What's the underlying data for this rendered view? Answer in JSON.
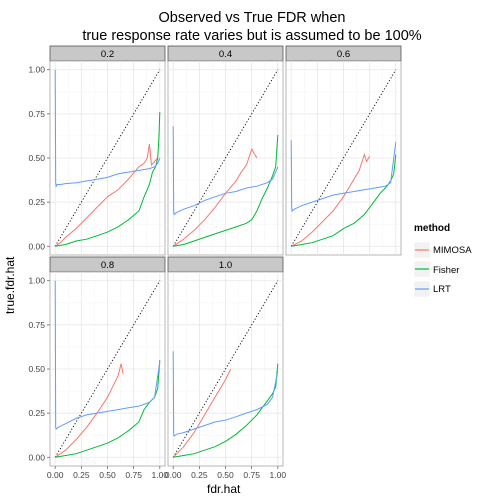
{
  "title_line1": "Observed vs True FDR when",
  "title_line2": "true response rate varies but is assumed to be 100%",
  "chart_data": {
    "type": "line",
    "xlabel": "fdr.hat",
    "ylabel": "true.fdr.hat",
    "xlim": [
      0,
      1
    ],
    "ylim": [
      0,
      1
    ],
    "xticks": [
      "0.00",
      "0.25",
      "0.50",
      "0.75",
      "1.00"
    ],
    "yticks": [
      "0.00",
      "0.25",
      "0.50",
      "0.75",
      "1.00"
    ],
    "grid": true,
    "diagonal_reference": "dotted y = x",
    "legend": {
      "title": "method",
      "placement": "right",
      "entries": [
        {
          "name": "MIMOSA",
          "color": "#F8766D"
        },
        {
          "name": "Fisher",
          "color": "#00BA38"
        },
        {
          "name": "LRT",
          "color": "#619CFF"
        }
      ]
    },
    "facets": [
      {
        "label": "0.2",
        "series": [
          {
            "name": "MIMOSA",
            "x": [
              0.0,
              0.05,
              0.1,
              0.2,
              0.3,
              0.4,
              0.5,
              0.6,
              0.7,
              0.8,
              0.85,
              0.88,
              0.9,
              0.92,
              0.95,
              0.98
            ],
            "y": [
              0.0,
              0.02,
              0.05,
              0.1,
              0.16,
              0.22,
              0.28,
              0.32,
              0.38,
              0.45,
              0.47,
              0.5,
              0.58,
              0.46,
              0.48,
              0.5
            ]
          },
          {
            "name": "Fisher",
            "x": [
              0.0,
              0.1,
              0.2,
              0.3,
              0.4,
              0.5,
              0.6,
              0.7,
              0.8,
              0.85,
              0.9,
              0.93,
              0.96,
              0.98,
              0.99,
              1.0
            ],
            "y": [
              0.0,
              0.01,
              0.03,
              0.04,
              0.06,
              0.08,
              0.11,
              0.15,
              0.2,
              0.28,
              0.35,
              0.42,
              0.45,
              0.5,
              0.6,
              0.76
            ]
          },
          {
            "name": "LRT",
            "x": [
              0.0,
              0.005,
              0.01,
              0.02,
              0.05,
              0.1,
              0.2,
              0.3,
              0.4,
              0.5,
              0.6,
              0.7,
              0.8,
              0.9,
              0.95,
              0.98,
              1.0
            ],
            "y": [
              1.0,
              0.36,
              0.34,
              0.35,
              0.35,
              0.355,
              0.36,
              0.37,
              0.38,
              0.39,
              0.41,
              0.42,
              0.43,
              0.44,
              0.45,
              0.47,
              0.5
            ]
          }
        ]
      },
      {
        "label": "0.4",
        "series": [
          {
            "name": "MIMOSA",
            "x": [
              0.0,
              0.1,
              0.2,
              0.3,
              0.4,
              0.5,
              0.6,
              0.65,
              0.7,
              0.75,
              0.8
            ],
            "y": [
              0.0,
              0.04,
              0.09,
              0.15,
              0.22,
              0.3,
              0.37,
              0.42,
              0.46,
              0.55,
              0.5
            ]
          },
          {
            "name": "Fisher",
            "x": [
              0.0,
              0.1,
              0.2,
              0.3,
              0.4,
              0.5,
              0.6,
              0.7,
              0.75,
              0.8,
              0.85,
              0.9,
              0.95,
              0.98,
              1.0
            ],
            "y": [
              0.0,
              0.01,
              0.03,
              0.05,
              0.07,
              0.09,
              0.11,
              0.13,
              0.15,
              0.2,
              0.27,
              0.33,
              0.4,
              0.45,
              0.63
            ]
          },
          {
            "name": "LRT",
            "x": [
              0.0,
              0.005,
              0.01,
              0.03,
              0.1,
              0.2,
              0.3,
              0.4,
              0.5,
              0.6,
              0.7,
              0.8,
              0.9,
              0.95,
              1.0
            ],
            "y": [
              0.68,
              0.2,
              0.18,
              0.19,
              0.21,
              0.23,
              0.26,
              0.28,
              0.3,
              0.31,
              0.33,
              0.34,
              0.36,
              0.38,
              0.45
            ]
          }
        ]
      },
      {
        "label": "0.6",
        "series": [
          {
            "name": "MIMOSA",
            "x": [
              0.0,
              0.1,
              0.2,
              0.3,
              0.4,
              0.5,
              0.6,
              0.65,
              0.7,
              0.72,
              0.75
            ],
            "y": [
              0.0,
              0.03,
              0.08,
              0.14,
              0.2,
              0.28,
              0.38,
              0.43,
              0.52,
              0.48,
              0.51
            ]
          },
          {
            "name": "Fisher",
            "x": [
              0.0,
              0.1,
              0.2,
              0.3,
              0.4,
              0.5,
              0.6,
              0.7,
              0.8,
              0.85,
              0.9,
              0.95,
              0.98,
              1.0
            ],
            "y": [
              0.0,
              0.01,
              0.02,
              0.04,
              0.06,
              0.1,
              0.13,
              0.18,
              0.26,
              0.3,
              0.33,
              0.37,
              0.41,
              0.52
            ]
          },
          {
            "name": "LRT",
            "x": [
              0.0,
              0.005,
              0.01,
              0.03,
              0.1,
              0.2,
              0.3,
              0.4,
              0.5,
              0.6,
              0.7,
              0.8,
              0.9,
              0.95,
              1.0
            ],
            "y": [
              0.6,
              0.22,
              0.2,
              0.21,
              0.23,
              0.25,
              0.27,
              0.29,
              0.3,
              0.31,
              0.32,
              0.33,
              0.34,
              0.36,
              0.59
            ]
          }
        ]
      },
      {
        "label": "0.8",
        "series": [
          {
            "name": "MIMOSA",
            "x": [
              0.0,
              0.1,
              0.2,
              0.3,
              0.4,
              0.5,
              0.55,
              0.6,
              0.63,
              0.65
            ],
            "y": [
              0.0,
              0.04,
              0.1,
              0.17,
              0.25,
              0.34,
              0.4,
              0.46,
              0.53,
              0.47
            ]
          },
          {
            "name": "Fisher",
            "x": [
              0.0,
              0.1,
              0.2,
              0.3,
              0.4,
              0.5,
              0.6,
              0.7,
              0.8,
              0.85,
              0.9,
              0.95,
              0.98,
              1.0
            ],
            "y": [
              0.0,
              0.01,
              0.02,
              0.04,
              0.06,
              0.08,
              0.11,
              0.15,
              0.2,
              0.27,
              0.31,
              0.34,
              0.39,
              0.55
            ]
          },
          {
            "name": "LRT",
            "x": [
              0.0,
              0.005,
              0.01,
              0.03,
              0.1,
              0.2,
              0.3,
              0.4,
              0.5,
              0.6,
              0.7,
              0.8,
              0.9,
              0.95,
              1.0
            ],
            "y": [
              1.0,
              0.17,
              0.16,
              0.17,
              0.19,
              0.22,
              0.24,
              0.25,
              0.26,
              0.27,
              0.28,
              0.29,
              0.31,
              0.34,
              0.54
            ]
          }
        ]
      },
      {
        "label": "1.0",
        "series": [
          {
            "name": "MIMOSA",
            "x": [
              0.0,
              0.1,
              0.2,
              0.3,
              0.4,
              0.5,
              0.55
            ],
            "y": [
              0.0,
              0.06,
              0.14,
              0.24,
              0.34,
              0.44,
              0.5
            ]
          },
          {
            "name": "Fisher",
            "x": [
              0.0,
              0.1,
              0.2,
              0.3,
              0.4,
              0.5,
              0.6,
              0.7,
              0.8,
              0.85,
              0.9,
              0.95,
              0.98,
              1.0
            ],
            "y": [
              0.0,
              0.01,
              0.02,
              0.04,
              0.06,
              0.09,
              0.13,
              0.18,
              0.24,
              0.28,
              0.32,
              0.36,
              0.4,
              0.53
            ]
          },
          {
            "name": "LRT",
            "x": [
              0.0,
              0.005,
              0.01,
              0.03,
              0.1,
              0.2,
              0.3,
              0.4,
              0.5,
              0.6,
              0.7,
              0.8,
              0.9,
              0.95,
              1.0
            ],
            "y": [
              0.6,
              0.13,
              0.12,
              0.13,
              0.14,
              0.16,
              0.18,
              0.2,
              0.21,
              0.23,
              0.25,
              0.27,
              0.3,
              0.34,
              0.49
            ]
          }
        ]
      }
    ]
  }
}
